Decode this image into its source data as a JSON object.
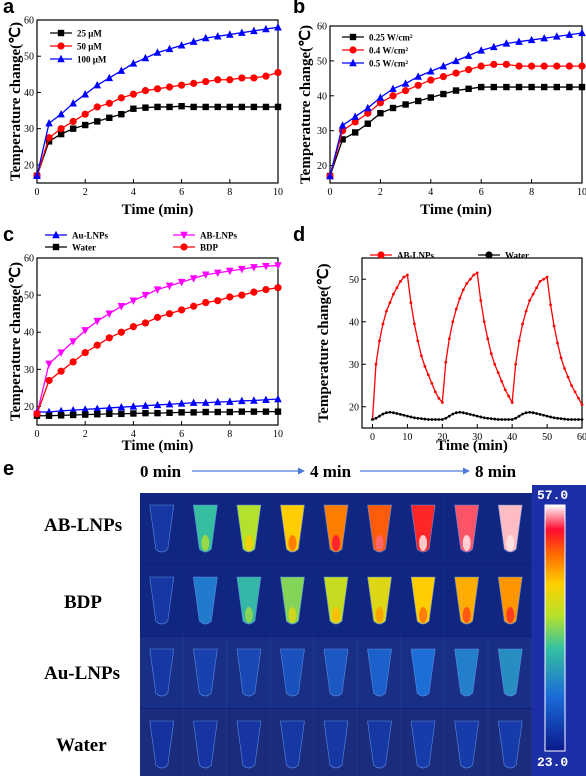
{
  "panel_letters": [
    "a",
    "b",
    "c",
    "d",
    "e"
  ],
  "chart_data": [
    {
      "panel": "a",
      "type": "line",
      "ylabel": "Temperature change(℃)",
      "xlabel": "Time (min)",
      "xlim": [
        0,
        10
      ],
      "ylim": [
        15,
        60
      ],
      "xticks": [
        0,
        2,
        4,
        6,
        8,
        10
      ],
      "yticks": [
        20,
        30,
        40,
        50,
        60
      ],
      "legend_position": "top-left",
      "x": [
        0,
        0.5,
        1,
        1.5,
        2,
        2.5,
        3,
        3.5,
        4,
        4.5,
        5,
        5.5,
        6,
        6.5,
        7,
        7.5,
        8,
        8.5,
        9,
        9.5,
        10
      ],
      "series": [
        {
          "name": "25 μM",
          "color": "#000000",
          "marker": "square",
          "values": [
            17,
            26.5,
            28.5,
            30,
            31,
            32,
            33,
            34,
            35.5,
            35.8,
            36,
            36,
            36.2,
            36,
            36,
            36,
            36,
            36,
            36,
            36,
            36
          ]
        },
        {
          "name": "50 μM",
          "color": "#ff0000",
          "marker": "circle",
          "values": [
            17,
            27.5,
            30,
            32,
            34,
            36,
            37,
            38.5,
            39.5,
            40.5,
            41,
            41.5,
            42,
            42.5,
            43,
            43.5,
            43.5,
            44,
            44,
            44.5,
            45.5
          ]
        },
        {
          "name": "100 μM",
          "color": "#0000ff",
          "marker": "triangle",
          "values": [
            17,
            31.5,
            34,
            37,
            39.5,
            42,
            44,
            46,
            48,
            49.5,
            51,
            52,
            53,
            54,
            55,
            55.5,
            56,
            56.5,
            57,
            57.5,
            58
          ]
        }
      ]
    },
    {
      "panel": "b",
      "type": "line",
      "ylabel": "Temperature change(℃)",
      "xlabel": "Time (min)",
      "xlim": [
        0,
        10
      ],
      "ylim": [
        15,
        60
      ],
      "xticks": [
        0,
        2,
        4,
        6,
        8,
        10
      ],
      "yticks": [
        20,
        30,
        40,
        50,
        60
      ],
      "legend_position": "top-left",
      "x": [
        0,
        0.5,
        1,
        1.5,
        2,
        2.5,
        3,
        3.5,
        4,
        4.5,
        5,
        5.5,
        6,
        6.5,
        7,
        7.5,
        8,
        8.5,
        9,
        9.5,
        10
      ],
      "series": [
        {
          "name": "0.25 W/cm²",
          "color": "#000000",
          "marker": "square",
          "values": [
            17,
            27.5,
            29.5,
            32,
            35,
            36.5,
            37.5,
            38.5,
            39.5,
            40.5,
            41.5,
            42,
            42.5,
            42.5,
            42.5,
            42.5,
            42.5,
            42.5,
            42.5,
            42.5,
            42.5
          ]
        },
        {
          "name": "0.4 W/cm²",
          "color": "#ff0000",
          "marker": "circle",
          "values": [
            17,
            30,
            32.5,
            35,
            38,
            40,
            41.5,
            43,
            44.5,
            45.5,
            46.5,
            47.5,
            48.5,
            49,
            49,
            48.5,
            48.5,
            48.5,
            48.5,
            48.5,
            48.5
          ]
        },
        {
          "name": "0.5 W/cm²",
          "color": "#0000ff",
          "marker": "triangle",
          "values": [
            17,
            31.5,
            34,
            36.5,
            39.5,
            42,
            43.5,
            45.5,
            47,
            48.5,
            50,
            51.5,
            53,
            54,
            55,
            55.5,
            56,
            56.5,
            57,
            57.5,
            58
          ]
        }
      ]
    },
    {
      "panel": "c",
      "type": "line",
      "ylabel": "Temperature change(℃)",
      "xlabel": "Time (min)",
      "xlim": [
        0,
        10
      ],
      "ylim": [
        15,
        60
      ],
      "xticks": [
        0,
        2,
        4,
        6,
        8,
        10
      ],
      "yticks": [
        20,
        30,
        40,
        50,
        60
      ],
      "legend_position": "top, two columns",
      "x": [
        0,
        0.5,
        1,
        1.5,
        2,
        2.5,
        3,
        3.5,
        4,
        4.5,
        5,
        5.5,
        6,
        6.5,
        7,
        7.5,
        8,
        8.5,
        9,
        9.5,
        10
      ],
      "series": [
        {
          "name": "Au-LNPs",
          "color": "#0000ff",
          "marker": "triangle",
          "values": [
            18.5,
            18.5,
            18.8,
            19,
            19.2,
            19.4,
            19.6,
            19.8,
            20,
            20.2,
            20.4,
            20.6,
            20.8,
            21,
            21,
            21.2,
            21.3,
            21.5,
            21.6,
            21.8,
            22
          ]
        },
        {
          "name": "AB-LNPs",
          "color": "#ff00ff",
          "marker": "triangle-down",
          "values": [
            18,
            31.5,
            34.5,
            37.5,
            40.5,
            43,
            45,
            47,
            48.5,
            50,
            51.5,
            52.5,
            53.5,
            54.5,
            55.5,
            56,
            56.5,
            57,
            57.5,
            57.8,
            58
          ]
        },
        {
          "name": "Water",
          "color": "#000000",
          "marker": "square",
          "values": [
            17.5,
            17.5,
            17.6,
            17.7,
            17.8,
            17.9,
            18,
            18,
            18.1,
            18.2,
            18.2,
            18.3,
            18.4,
            18.4,
            18.5,
            18.5,
            18.5,
            18.6,
            18.6,
            18.6,
            18.6
          ]
        },
        {
          "name": "BDP",
          "color": "#ff0000",
          "marker": "circle",
          "values": [
            18,
            27,
            29.5,
            32,
            34.5,
            36.5,
            38.5,
            40,
            41.5,
            42.5,
            44,
            45,
            46,
            47,
            48,
            48.5,
            49.5,
            50,
            50.8,
            51.5,
            52
          ]
        }
      ]
    },
    {
      "panel": "d",
      "type": "line",
      "ylabel": "Temperature change(℃)",
      "xlabel": "Time (min)",
      "xlim": [
        -3,
        60
      ],
      "ylim": [
        15,
        55
      ],
      "xticks": [
        0,
        10,
        20,
        30,
        40,
        50,
        60
      ],
      "yticks": [
        20,
        30,
        40,
        50
      ],
      "legend_position": "top",
      "x": [
        0,
        1,
        2,
        3,
        4,
        5,
        6,
        7,
        8,
        9,
        10,
        11,
        12,
        13,
        14,
        15,
        16,
        17,
        18,
        19,
        20,
        21,
        22,
        23,
        24,
        25,
        26,
        27,
        28,
        29,
        30,
        31,
        32,
        33,
        34,
        35,
        36,
        37,
        38,
        39,
        40,
        41,
        42,
        43,
        44,
        45,
        46,
        47,
        48,
        49,
        50,
        51,
        52,
        53,
        54,
        55,
        56,
        57,
        58,
        59,
        60
      ],
      "series": [
        {
          "name": "AB-LNPs",
          "color": "#ff0000",
          "marker": "small-dot",
          "values": [
            17,
            30,
            35.5,
            39.5,
            42.5,
            44.5,
            46.5,
            48,
            49.5,
            50.5,
            51,
            44.5,
            39.5,
            35.5,
            32,
            29.5,
            27.5,
            25.5,
            23.5,
            22,
            21,
            30.5,
            36,
            40,
            43,
            45.5,
            47.5,
            49,
            50,
            51,
            51.5,
            45,
            40,
            36,
            32.5,
            30,
            28,
            26,
            24,
            22.5,
            21,
            30,
            35.5,
            39.5,
            42.5,
            45,
            46.5,
            48,
            49.5,
            50,
            50.5,
            44,
            39,
            35,
            31.5,
            29,
            27,
            25,
            23.5,
            22,
            20.5
          ]
        },
        {
          "name": "Water",
          "color": "#000000",
          "marker": "small-dot",
          "values": [
            17,
            17.3,
            17.8,
            18.3,
            18.6,
            18.7,
            18.6,
            18.4,
            18.2,
            18,
            17.8,
            17.6,
            17.4,
            17.3,
            17.2,
            17.1,
            17,
            17,
            17,
            17,
            17,
            17.3,
            17.8,
            18.3,
            18.6,
            18.7,
            18.6,
            18.4,
            18.2,
            18,
            17.8,
            17.6,
            17.4,
            17.3,
            17.2,
            17.1,
            17,
            17,
            17,
            17,
            17,
            17.3,
            17.8,
            18.3,
            18.6,
            18.7,
            18.6,
            18.4,
            18.2,
            18,
            17.8,
            17.6,
            17.4,
            17.3,
            17.2,
            17.1,
            17,
            17,
            17,
            17,
            17
          ]
        }
      ]
    }
  ],
  "thermal": {
    "time_labels": [
      "0 min",
      "4 min",
      "8 min"
    ],
    "row_labels": [
      "AB-LNPs",
      "BDP",
      "Au-LNPs",
      "Water"
    ],
    "colorbar_max": "57.0",
    "colorbar_min": "23.0",
    "colors": {
      "background": "#0d1f7a",
      "arrow": "#4a7bd8"
    },
    "tube_levels": [
      [
        0.05,
        0.42,
        0.55,
        0.68,
        0.78,
        0.82,
        0.88,
        0.93,
        0.98
      ],
      [
        0.05,
        0.25,
        0.4,
        0.5,
        0.58,
        0.62,
        0.68,
        0.72,
        0.75
      ],
      [
        0.05,
        0.08,
        0.1,
        0.13,
        0.15,
        0.18,
        0.22,
        0.26,
        0.3
      ],
      [
        0.03,
        0.04,
        0.04,
        0.05,
        0.05,
        0.05,
        0.06,
        0.06,
        0.06
      ]
    ]
  }
}
